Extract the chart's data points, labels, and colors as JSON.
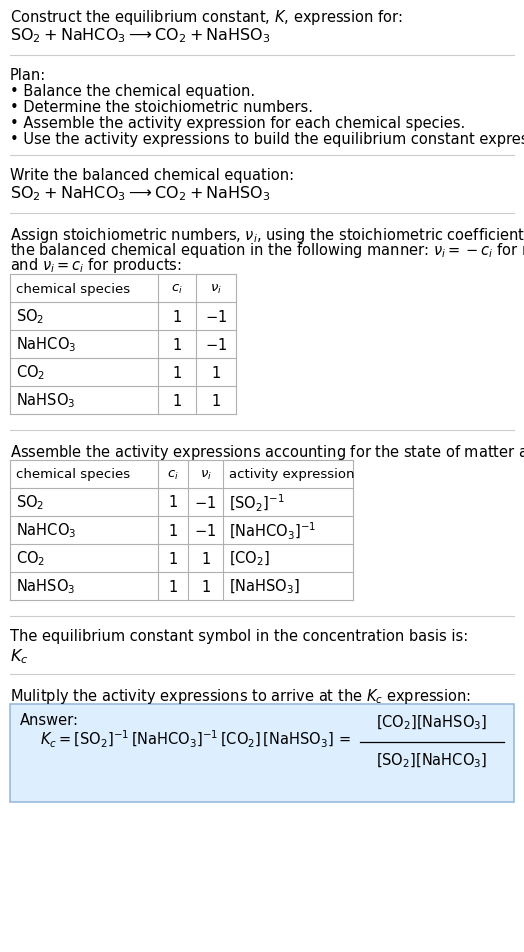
{
  "title_line1": "Construct the equilibrium constant, $K$, expression for:",
  "title_line2": "$\\mathrm{SO_2 + NaHCO_3 \\longrightarrow CO_2 + NaHSO_3}$",
  "plan_header": "Plan:",
  "plan_items": [
    "• Balance the chemical equation.",
    "• Determine the stoichiometric numbers.",
    "• Assemble the activity expression for each chemical species.",
    "• Use the activity expressions to build the equilibrium constant expression."
  ],
  "balanced_eq_header": "Write the balanced chemical equation:",
  "balanced_eq": "$\\mathrm{SO_2 + NaHCO_3 \\longrightarrow CO_2 + NaHSO_3}$",
  "stoich_intro_lines": [
    "Assign stoichiometric numbers, $\\nu_i$, using the stoichiometric coefficients, $c_i$, from",
    "the balanced chemical equation in the following manner: $\\nu_i = -c_i$ for reactants",
    "and $\\nu_i = c_i$ for products:"
  ],
  "table1_headers": [
    "chemical species",
    "$c_i$",
    "$\\nu_i$"
  ],
  "table1_rows": [
    [
      "$\\mathrm{SO_2}$",
      "1",
      "$-1$"
    ],
    [
      "$\\mathrm{NaHCO_3}$",
      "1",
      "$-1$"
    ],
    [
      "$\\mathrm{CO_2}$",
      "1",
      "$1$"
    ],
    [
      "$\\mathrm{NaHSO_3}$",
      "1",
      "$1$"
    ]
  ],
  "activity_intro": "Assemble the activity expressions accounting for the state of matter and $\\nu_i$:",
  "table2_headers": [
    "chemical species",
    "$c_i$",
    "$\\nu_i$",
    "activity expression"
  ],
  "table2_rows": [
    [
      "$\\mathrm{SO_2}$",
      "1",
      "$-1$",
      "$[\\mathrm{SO_2}]^{-1}$"
    ],
    [
      "$\\mathrm{NaHCO_3}$",
      "1",
      "$-1$",
      "$[\\mathrm{NaHCO_3}]^{-1}$"
    ],
    [
      "$\\mathrm{CO_2}$",
      "1",
      "$1$",
      "$[\\mathrm{CO_2}]$"
    ],
    [
      "$\\mathrm{NaHSO_3}$",
      "1",
      "$1$",
      "$[\\mathrm{NaHSO_3}]$"
    ]
  ],
  "kc_text": "The equilibrium constant symbol in the concentration basis is:",
  "kc_symbol": "$K_c$",
  "multiply_text": "Mulitply the activity expressions to arrive at the $K_c$ expression:",
  "answer_label": "Answer:",
  "bg_color": "#ffffff",
  "text_color": "#000000",
  "table_border_color": "#b0b0b0",
  "answer_box_bg": "#ddeeff",
  "answer_box_border": "#99bbdd",
  "font_size": 10.5,
  "font_size_title": 11.5,
  "font_size_small": 9.5
}
